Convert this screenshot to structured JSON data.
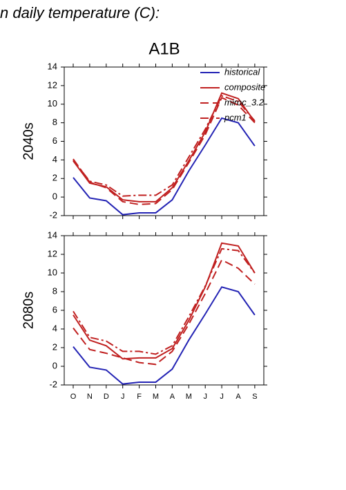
{
  "header": {
    "title": "n daily temperature (C):"
  },
  "chart_data": [
    {
      "type": "line",
      "title": "A1B",
      "ylabel": "2040s",
      "legend": "upper right",
      "categories": [
        null,
        null,
        null,
        null,
        null,
        null,
        null,
        null,
        null,
        null,
        null,
        null
      ],
      "ylim": [
        -2,
        14
      ],
      "yticks": [
        -2,
        0,
        2,
        4,
        6,
        8,
        10,
        12,
        14
      ],
      "series": [
        {
          "name": "historical",
          "color": "#2323b4",
          "dash": "solid",
          "values": [
            2.1,
            -0.1,
            -0.4,
            -1.9,
            -1.7,
            -1.7,
            -0.3,
            2.8,
            5.6,
            8.5,
            8.0,
            5.5
          ]
        },
        {
          "name": "composite",
          "color": "#c02020",
          "dash": "solid",
          "values": [
            3.9,
            1.5,
            1.1,
            -0.3,
            -0.5,
            -0.5,
            1.0,
            3.9,
            7.0,
            11.2,
            10.6,
            8.1
          ]
        },
        {
          "name": "miroc_3.2",
          "color": "#c02020",
          "dash": "dashed",
          "values": [
            4.1,
            1.6,
            1.0,
            -0.5,
            -0.8,
            -0.7,
            0.8,
            3.7,
            6.7,
            10.7,
            9.9,
            8.0
          ]
        },
        {
          "name": "pcm1",
          "color": "#c02020",
          "dash": "dashdot",
          "values": [
            4.0,
            1.7,
            1.3,
            0.1,
            0.2,
            0.2,
            1.3,
            4.3,
            7.3,
            10.9,
            10.3,
            8.2
          ]
        }
      ]
    },
    {
      "type": "line",
      "ylabel": "2080s",
      "categories": [
        "O",
        "N",
        "D",
        "J",
        "F",
        "M",
        "A",
        "M",
        "J",
        "J",
        "A",
        "S"
      ],
      "ylim": [
        -2,
        14
      ],
      "yticks": [
        -2,
        0,
        2,
        4,
        6,
        8,
        10,
        12,
        14
      ],
      "series": [
        {
          "color": "#2323b4",
          "dash": "solid",
          "values": [
            2.1,
            -0.1,
            -0.4,
            -1.9,
            -1.7,
            -1.7,
            -0.3,
            2.8,
            5.6,
            8.5,
            8.0,
            5.5
          ]
        },
        {
          "color": "#c02020",
          "dash": "solid",
          "values": [
            5.5,
            2.8,
            2.2,
            0.8,
            0.9,
            0.9,
            1.9,
            4.9,
            8.5,
            13.2,
            12.9,
            10.0
          ]
        },
        {
          "color": "#c02020",
          "dash": "dashed",
          "values": [
            4.1,
            1.8,
            1.4,
            0.9,
            0.4,
            0.2,
            1.6,
            4.5,
            7.8,
            11.4,
            10.5,
            8.8
          ]
        },
        {
          "color": "#c02020",
          "dash": "dashdot",
          "values": [
            5.9,
            3.1,
            2.7,
            1.6,
            1.6,
            1.3,
            2.2,
            5.3,
            8.6,
            12.6,
            12.4,
            10.0
          ]
        }
      ]
    }
  ]
}
